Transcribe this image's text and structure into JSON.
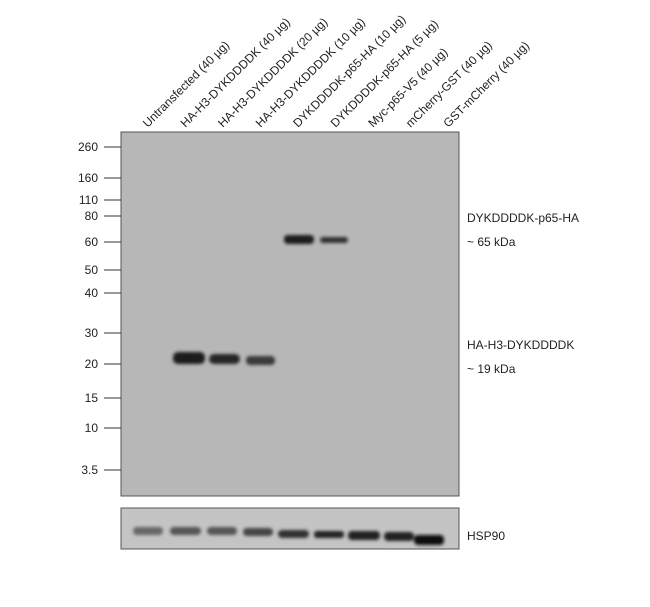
{
  "lanes": [
    "Untransfected (40 µg)",
    "HA-H3-DYKDDDDK (40 µg)",
    "HA-H3-DYKDDDDK (20 µg)",
    "HA-H3-DYKDDDDK (10 µg)",
    "DYKDDDDK-p65-HA (10 µg)",
    "DYKDDDDK-p65-HA (5 µg)",
    "Myc-p65-V5 (40 µg)",
    "mCherry-GST (40 µg)",
    "GST-mCherry (40 µg)"
  ],
  "markers": [
    "260",
    "160",
    "110",
    "80",
    "60",
    "50",
    "40",
    "30",
    "20",
    "15",
    "10",
    "3.5"
  ],
  "band_labels": [
    {
      "name": "DYKDDDDK-p65-HA",
      "size": "~ 65 kDa"
    },
    {
      "name": "HA-H3-DYKDDDDK",
      "size": "~ 19 kDa"
    }
  ],
  "loading_control": "HSP90"
}
